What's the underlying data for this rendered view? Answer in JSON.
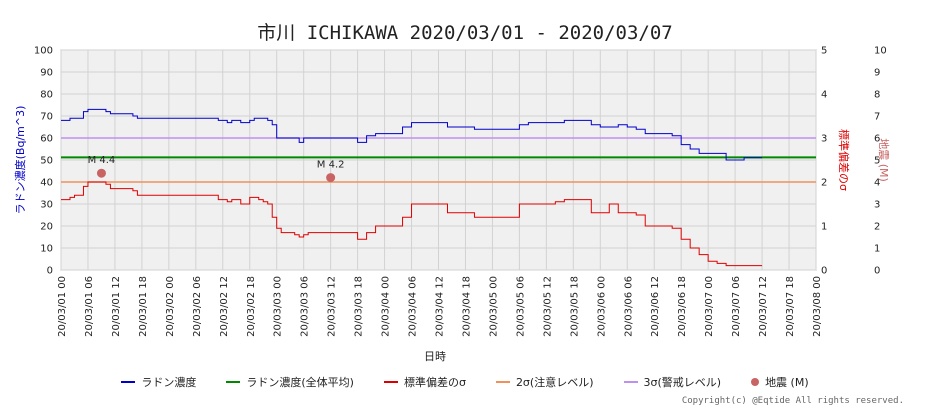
{
  "chart_data": {
    "type": "line",
    "title": "市川 ICHIKAWA 2020/03/01 - 2020/03/07",
    "xlabel": "日時",
    "ylabel_left": "ラドン濃度(Bq/m^3)",
    "ylabel_right1": "標準偏差のσ",
    "ylabel_right2": "地震 (M)",
    "y_left_range": [
      0,
      100
    ],
    "y_left_ticks": [
      "0",
      "10",
      "20",
      "30",
      "40",
      "50",
      "60",
      "70",
      "80",
      "90",
      "100"
    ],
    "y_sigma_range": [
      0,
      5
    ],
    "y_sigma_ticks": [
      "0",
      "1",
      "2",
      "3",
      "4",
      "5"
    ],
    "y_mag_range": [
      0,
      10
    ],
    "y_mag_ticks": [
      "0",
      "1",
      "2",
      "3",
      "4",
      "5",
      "6",
      "7",
      "8",
      "9",
      "10"
    ],
    "x_range_hours": [
      0,
      168
    ],
    "x_ticks": [
      "20/03/01 00",
      "20/03/01 06",
      "20/03/01 12",
      "20/03/01 18",
      "20/03/02 00",
      "20/03/02 06",
      "20/03/02 12",
      "20/03/02 18",
      "20/03/03 00",
      "20/03/03 06",
      "20/03/03 12",
      "20/03/03 18",
      "20/03/04 00",
      "20/03/04 06",
      "20/03/04 12",
      "20/03/04 18",
      "20/03/05 00",
      "20/03/05 06",
      "20/03/05 12",
      "20/03/05 18",
      "20/03/06 00",
      "20/03/06 06",
      "20/03/06 12",
      "20/03/06 18",
      "20/03/07 00",
      "20/03/07 06",
      "20/03/07 12",
      "20/03/07 18",
      "20/03/08 00"
    ],
    "grid": true,
    "legend_position": "bottom",
    "series": [
      {
        "name": "ラドン濃度",
        "color": "#0000cc",
        "axis": "left",
        "x": [
          0,
          1,
          2,
          3,
          4,
          5,
          6,
          7,
          8,
          9,
          10,
          11,
          12,
          13,
          14,
          15,
          16,
          17,
          18,
          20,
          22,
          24,
          26,
          28,
          30,
          32,
          34,
          35,
          36,
          37,
          38,
          39,
          40,
          41,
          42,
          43,
          44,
          45,
          46,
          47,
          48,
          49,
          50,
          51,
          52,
          53,
          54,
          55,
          56,
          57,
          58,
          60,
          62,
          64,
          66,
          68,
          70,
          72,
          74,
          76,
          78,
          80,
          82,
          84,
          86,
          88,
          90,
          92,
          94,
          96,
          98,
          100,
          102,
          104,
          106,
          108,
          110,
          112,
          114,
          116,
          118,
          120,
          122,
          124,
          126,
          128,
          130,
          132,
          134,
          136,
          138,
          140,
          142,
          144,
          146,
          148,
          150,
          152,
          154,
          156
        ],
        "values": [
          68,
          68,
          69,
          69,
          69,
          72,
          73,
          73,
          73,
          73,
          72,
          71,
          71,
          71,
          71,
          71,
          70,
          69,
          69,
          69,
          69,
          69,
          69,
          69,
          69,
          69,
          69,
          68,
          68,
          67,
          68,
          68,
          67,
          67,
          68,
          69,
          69,
          69,
          68,
          66,
          60,
          60,
          60,
          60,
          60,
          58,
          60,
          60,
          60,
          60,
          60,
          60,
          60,
          60,
          58,
          61,
          62,
          62,
          62,
          65,
          67,
          67,
          67,
          67,
          65,
          65,
          65,
          64,
          64,
          64,
          64,
          64,
          66,
          67,
          67,
          67,
          67,
          68,
          68,
          68,
          66,
          65,
          65,
          66,
          65,
          64,
          62,
          62,
          62,
          61,
          57,
          55,
          53,
          53,
          53,
          50,
          50,
          51,
          51,
          51
        ]
      },
      {
        "name": "ラドン濃度(全体平均)",
        "color": "#008800",
        "axis": "left",
        "x": [
          0,
          168
        ],
        "values": [
          51.2,
          51.2
        ]
      },
      {
        "name": "標準偏差のσ",
        "color": "#dd0000",
        "axis": "sigma",
        "x": [
          0,
          1,
          2,
          3,
          4,
          5,
          6,
          7,
          8,
          9,
          10,
          11,
          12,
          13,
          14,
          15,
          16,
          17,
          18,
          20,
          22,
          24,
          26,
          28,
          30,
          32,
          34,
          35,
          36,
          37,
          38,
          39,
          40,
          41,
          42,
          43,
          44,
          45,
          46,
          47,
          48,
          49,
          50,
          51,
          52,
          53,
          54,
          55,
          56,
          57,
          58,
          60,
          62,
          64,
          66,
          68,
          70,
          72,
          74,
          76,
          78,
          80,
          82,
          84,
          86,
          88,
          90,
          92,
          94,
          96,
          98,
          100,
          102,
          104,
          106,
          108,
          110,
          112,
          114,
          116,
          118,
          120,
          122,
          124,
          126,
          128,
          130,
          132,
          134,
          136,
          138,
          140,
          142,
          144,
          146,
          148,
          150,
          152,
          154,
          156
        ],
        "values": [
          1.6,
          1.6,
          1.65,
          1.7,
          1.7,
          1.9,
          2.0,
          2.0,
          2.0,
          2.0,
          1.95,
          1.85,
          1.85,
          1.85,
          1.85,
          1.85,
          1.8,
          1.7,
          1.7,
          1.7,
          1.7,
          1.7,
          1.7,
          1.7,
          1.7,
          1.7,
          1.7,
          1.6,
          1.6,
          1.55,
          1.6,
          1.6,
          1.5,
          1.5,
          1.65,
          1.65,
          1.6,
          1.55,
          1.5,
          1.2,
          0.95,
          0.85,
          0.85,
          0.85,
          0.8,
          0.75,
          0.8,
          0.85,
          0.85,
          0.85,
          0.85,
          0.85,
          0.85,
          0.85,
          0.7,
          0.85,
          1.0,
          1.0,
          1.0,
          1.2,
          1.5,
          1.5,
          1.5,
          1.5,
          1.3,
          1.3,
          1.3,
          1.2,
          1.2,
          1.2,
          1.2,
          1.2,
          1.5,
          1.5,
          1.5,
          1.5,
          1.55,
          1.6,
          1.6,
          1.6,
          1.3,
          1.3,
          1.5,
          1.3,
          1.3,
          1.25,
          1.0,
          1.0,
          1.0,
          0.95,
          0.7,
          0.5,
          0.35,
          0.2,
          0.15,
          0.1,
          0.1,
          0.1,
          0.1,
          0.1
        ]
      },
      {
        "name": "2σ(注意レベル)",
        "color": "#f0905a",
        "axis": "sigma",
        "x": [
          0,
          168
        ],
        "values": [
          2,
          2
        ]
      },
      {
        "name": "3σ(警戒レベル)",
        "color": "#c090f0",
        "axis": "sigma",
        "x": [
          0,
          168
        ],
        "values": [
          3,
          3
        ]
      }
    ],
    "earthquakes": {
      "name": "地震 (M)",
      "color": "#c86464",
      "axis": "mag",
      "points": [
        {
          "x": 9,
          "value": 4.4,
          "label": "M 4.4"
        },
        {
          "x": 60,
          "value": 4.2,
          "label": "M 4.2"
        }
      ]
    }
  },
  "legend": [
    {
      "label": "ラドン濃度",
      "color": "#0000cc",
      "kind": "line"
    },
    {
      "label": "ラドン濃度(全体平均)",
      "color": "#008800",
      "kind": "line"
    },
    {
      "label": "標準偏差のσ",
      "color": "#dd0000",
      "kind": "line"
    },
    {
      "label": "2σ(注意レベル)",
      "color": "#f0905a",
      "kind": "line"
    },
    {
      "label": "3σ(警戒レベル)",
      "color": "#c090f0",
      "kind": "line"
    },
    {
      "label": "地震 (M)",
      "color": "#c86464",
      "kind": "dot"
    }
  ],
  "copyright": "Copyright(c) @Eqtide All rights reserved."
}
